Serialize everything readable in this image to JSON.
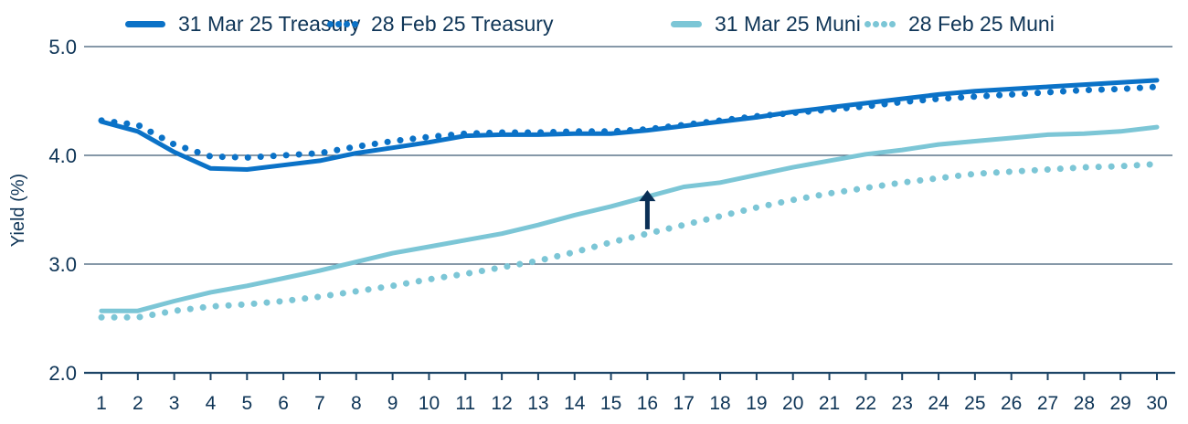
{
  "chart_data": {
    "type": "line",
    "title": "",
    "xlabel": "",
    "ylabel": "Yield (%)",
    "ylim": [
      2.0,
      5.0
    ],
    "yticks": [
      "2.0",
      "3.0",
      "4.0",
      "5.0"
    ],
    "grid": true,
    "legend_position": "top",
    "x": [
      1,
      2,
      3,
      4,
      5,
      6,
      7,
      8,
      9,
      10,
      11,
      12,
      13,
      14,
      15,
      16,
      17,
      18,
      19,
      20,
      21,
      22,
      23,
      24,
      25,
      26,
      27,
      28,
      29,
      30
    ],
    "series": [
      {
        "name": "31 Mar 25 Treasury",
        "style": "solid",
        "color": "#0b72c7",
        "values": [
          4.31,
          4.22,
          4.03,
          3.88,
          3.87,
          3.91,
          3.95,
          4.02,
          4.07,
          4.12,
          4.18,
          4.19,
          4.19,
          4.2,
          4.2,
          4.23,
          4.27,
          4.31,
          4.35,
          4.4,
          4.44,
          4.48,
          4.52,
          4.56,
          4.59,
          4.61,
          4.63,
          4.65,
          4.67,
          4.69
        ]
      },
      {
        "name": "28 Feb 25 Treasury",
        "style": "dotted",
        "color": "#0b72c7",
        "values": [
          4.32,
          4.28,
          4.1,
          3.99,
          3.98,
          4.0,
          4.02,
          4.08,
          4.13,
          4.17,
          4.2,
          4.21,
          4.21,
          4.22,
          4.22,
          4.24,
          4.28,
          4.32,
          4.36,
          4.39,
          4.42,
          4.45,
          4.49,
          4.52,
          4.54,
          4.56,
          4.58,
          4.6,
          4.61,
          4.63
        ]
      },
      {
        "name": "31 Mar 25 Muni",
        "style": "solid",
        "color": "#7cc6d6",
        "values": [
          2.57,
          2.57,
          2.66,
          2.74,
          2.8,
          2.87,
          2.94,
          3.02,
          3.1,
          3.16,
          3.22,
          3.28,
          3.36,
          3.45,
          3.53,
          3.62,
          3.71,
          3.75,
          3.82,
          3.89,
          3.95,
          4.01,
          4.05,
          4.1,
          4.13,
          4.16,
          4.19,
          4.2,
          4.22,
          4.26
        ]
      },
      {
        "name": "28 Feb 25 Muni",
        "style": "dotted",
        "color": "#7cc6d6",
        "values": [
          2.51,
          2.51,
          2.57,
          2.61,
          2.63,
          2.66,
          2.7,
          2.75,
          2.8,
          2.86,
          2.91,
          2.97,
          3.03,
          3.11,
          3.2,
          3.28,
          3.36,
          3.44,
          3.52,
          3.59,
          3.65,
          3.7,
          3.75,
          3.79,
          3.83,
          3.85,
          3.87,
          3.89,
          3.9,
          3.92
        ]
      }
    ],
    "annotations": [
      {
        "type": "arrow-up",
        "x": 16,
        "from": 3.32,
        "to": 3.68,
        "color": "#0a2f55",
        "note": "Muni yield increase"
      }
    ]
  },
  "legend": [
    {
      "label": "31 Mar 25 Treasury",
      "style": "solid",
      "color": "#0b72c7"
    },
    {
      "label": "28 Feb 25 Treasury",
      "style": "dotted",
      "color": "#0b72c7"
    },
    {
      "label": "31 Mar 25 Muni",
      "style": "solid",
      "color": "#7cc6d6"
    },
    {
      "label": "28 Feb 25 Muni",
      "style": "dotted",
      "color": "#7cc6d6"
    }
  ],
  "axis": {
    "y_label": "Yield (%)",
    "y_ticks": [
      "5.0",
      "4.0",
      "3.0",
      "2.0"
    ],
    "x_ticks": [
      "1",
      "2",
      "3",
      "4",
      "5",
      "6",
      "7",
      "8",
      "9",
      "10",
      "11",
      "12",
      "13",
      "14",
      "15",
      "16",
      "17",
      "18",
      "19",
      "20",
      "21",
      "22",
      "23",
      "24",
      "25",
      "26",
      "27",
      "28",
      "29",
      "30"
    ]
  },
  "colors": {
    "text": "#0f3557",
    "axis": "#1c4466",
    "grid": "#3e5a74",
    "treasury": "#0b72c7",
    "muni": "#7cc6d6",
    "arrow": "#0a2f55"
  }
}
